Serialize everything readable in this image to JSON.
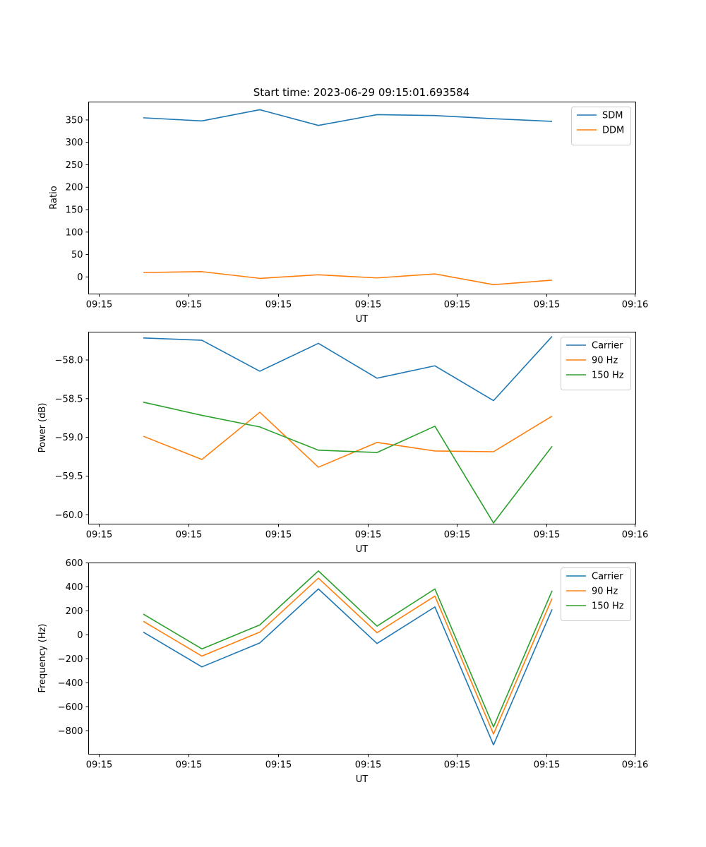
{
  "figure": {
    "title": "Start time: 2023-06-29 09:15:01.693584"
  },
  "chart_data": [
    {
      "type": "line",
      "title": "Start time: 2023-06-29 09:15:01.693584",
      "xlabel": "UT",
      "ylabel": "Ratio",
      "x_tick_labels": [
        "09:15",
        "09:15",
        "09:15",
        "09:15",
        "09:15",
        "09:15",
        "09:16"
      ],
      "y_ticks": [
        0,
        50,
        100,
        150,
        200,
        250,
        300,
        350
      ],
      "ylim": [
        -38,
        390
      ],
      "legend_position": "upper-right",
      "grid": false,
      "series": [
        {
          "name": "SDM",
          "color": "#1f77b4",
          "values": [
            354,
            347,
            372,
            337,
            361,
            359,
            352,
            346
          ]
        },
        {
          "name": "DDM",
          "color": "#ff7f0e",
          "values": [
            9,
            11,
            -4,
            4,
            -3,
            6,
            -18,
            -8
          ]
        }
      ]
    },
    {
      "type": "line",
      "title": "",
      "xlabel": "UT",
      "ylabel": "Power (dB)",
      "x_tick_labels": [
        "09:15",
        "09:15",
        "09:15",
        "09:15",
        "09:15",
        "09:15",
        "09:16"
      ],
      "y_ticks": [
        -60.0,
        -59.5,
        -59.0,
        -58.5,
        -58.0
      ],
      "y_tick_labels": [
        "−60.0",
        "−59.5",
        "−59.0",
        "−58.5",
        "−58.0"
      ],
      "ylim": [
        -60.12,
        -57.64
      ],
      "legend_position": "upper-right",
      "grid": false,
      "series": [
        {
          "name": "Carrier",
          "color": "#1f77b4",
          "values": [
            -57.72,
            -57.75,
            -58.15,
            -57.79,
            -58.24,
            -58.08,
            -58.53,
            -57.7
          ]
        },
        {
          "name": "90 Hz",
          "color": "#ff7f0e",
          "values": [
            -58.99,
            -59.29,
            -58.68,
            -59.39,
            -59.07,
            -59.18,
            -59.19,
            -58.73
          ]
        },
        {
          "name": "150 Hz",
          "color": "#2ca02c",
          "values": [
            -58.55,
            -58.72,
            -58.87,
            -59.17,
            -59.2,
            -58.86,
            -60.11,
            -59.12
          ]
        }
      ]
    },
    {
      "type": "line",
      "title": "",
      "xlabel": "UT",
      "ylabel": "Frequency (Hz)",
      "x_tick_labels": [
        "09:15",
        "09:15",
        "09:15",
        "09:15",
        "09:15",
        "09:15",
        "09:16"
      ],
      "y_ticks": [
        -800,
        -600,
        -400,
        -200,
        0,
        200,
        400,
        600
      ],
      "y_tick_labels": [
        "−800",
        "−600",
        "−400",
        "−200",
        "0",
        "200",
        "400",
        "600"
      ],
      "ylim": [
        -995,
        600
      ],
      "legend_position": "upper-right",
      "grid": false,
      "series": [
        {
          "name": "Carrier",
          "color": "#1f77b4",
          "values": [
            20,
            -270,
            -70,
            380,
            -75,
            230,
            -920,
            210
          ]
        },
        {
          "name": "90 Hz",
          "color": "#ff7f0e",
          "values": [
            110,
            -180,
            20,
            470,
            15,
            320,
            -830,
            300
          ]
        },
        {
          "name": "150 Hz",
          "color": "#2ca02c",
          "values": [
            170,
            -120,
            80,
            530,
            70,
            380,
            -770,
            365
          ]
        }
      ]
    }
  ]
}
